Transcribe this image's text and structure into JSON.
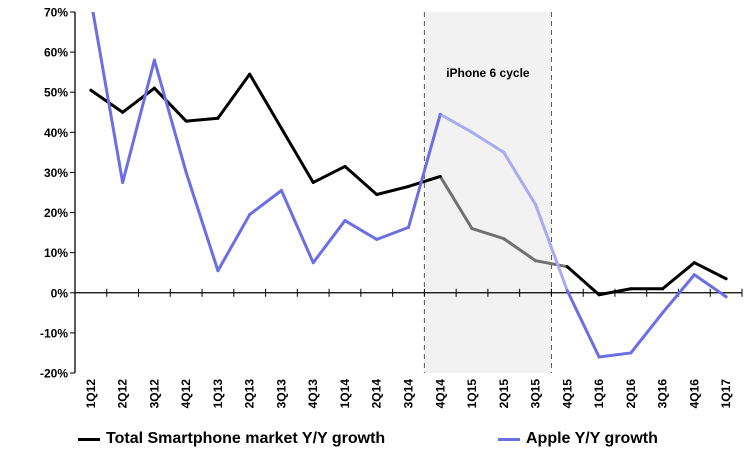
{
  "chart_data": {
    "type": "line",
    "title": "",
    "xlabel": "",
    "ylabel": "",
    "ylim": [
      -20,
      70
    ],
    "y_ticks": [
      -20,
      -10,
      0,
      10,
      20,
      30,
      40,
      50,
      60,
      70
    ],
    "y_tick_labels": [
      "-20%",
      "-10%",
      "0%",
      "10%",
      "20%",
      "30%",
      "40%",
      "50%",
      "60%",
      "70%"
    ],
    "categories": [
      "1Q12",
      "2Q12",
      "3Q12",
      "4Q12",
      "1Q13",
      "2Q13",
      "3Q13",
      "4Q13",
      "1Q14",
      "2Q14",
      "3Q14",
      "4Q14",
      "1Q15",
      "2Q15",
      "3Q15",
      "4Q15",
      "1Q16",
      "2Q16",
      "3Q16",
      "4Q16",
      "1Q17"
    ],
    "grid": false,
    "legend_position": "bottom",
    "series": [
      {
        "name": "Total Smartphone market Y/Y growth",
        "color": "#000000",
        "highlight_color": "#707070",
        "values": [
          50.5,
          45,
          51,
          42.8,
          43.5,
          54.5,
          41,
          27.5,
          31.5,
          24.5,
          26.5,
          29,
          16,
          13.5,
          8,
          6.5,
          -0.5,
          1,
          1,
          7.5,
          3.5
        ]
      },
      {
        "name": "Apple Y/Y growth",
        "color": "#6b6fe3",
        "highlight_color": "#a8abf0",
        "values": [
          73,
          27.5,
          58,
          30,
          5.5,
          19.5,
          25.5,
          7.5,
          18,
          13.3,
          16.3,
          44.5,
          40,
          35,
          22,
          0.5,
          -16,
          -15,
          -5,
          4.5,
          -1
        ]
      }
    ],
    "annotation": {
      "label": "iPhone 6 cycle",
      "start_category": "4Q14",
      "end_category": "4Q15"
    }
  }
}
